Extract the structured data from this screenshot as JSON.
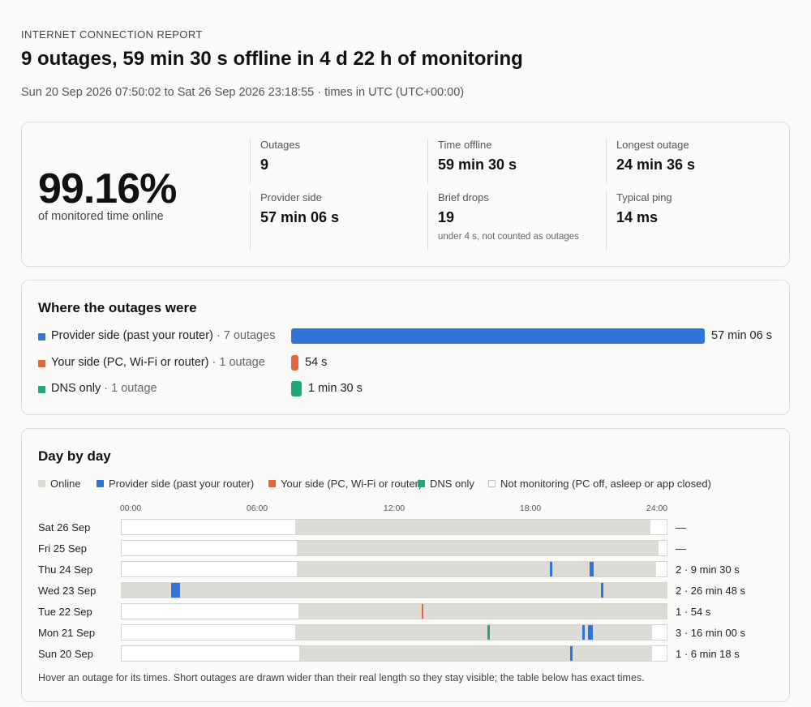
{
  "header": {
    "eyebrow": "INTERNET CONNECTION REPORT",
    "headline": "9 outages, 59 min 30 s offline in 4 d 22 h of monitoring",
    "range": "Sun 20 Sep 2026 07:50:02 to Sat 26 Sep 2026 23:18:55 · times in UTC (UTC+00:00)"
  },
  "summary": {
    "uptime": "99.16%",
    "uptime_label": "of monitored time online",
    "stats": [
      {
        "label": "Outages",
        "value": "9"
      },
      {
        "label": "Time offline",
        "value": "59 min 30 s"
      },
      {
        "label": "Longest outage",
        "value": "24 min 36 s"
      },
      {
        "label": "Provider side",
        "value": "57 min 06 s"
      },
      {
        "label": "Brief drops",
        "value": "19",
        "note": "under 4 s, not counted as outages"
      },
      {
        "label": "Typical ping",
        "value": "14 ms"
      }
    ]
  },
  "where": {
    "title": "Where the outages were",
    "rows": [
      {
        "label": "Provider side (past your router)",
        "count": " · 7 outages",
        "value": "57 min 06 s",
        "seconds": 3426,
        "color": "#2f74d6"
      },
      {
        "label": "Your side (PC, Wi-Fi or router)",
        "count": " · 1 outage",
        "value": "54 s",
        "seconds": 54,
        "color": "#e0673a"
      },
      {
        "label": "DNS only",
        "count": " · 1 outage",
        "value": "1 min 30 s",
        "seconds": 90,
        "color": "#22a77a"
      }
    ]
  },
  "days": {
    "title": "Day by day",
    "legend": [
      {
        "label": "Online",
        "color": "#dddbd6"
      },
      {
        "label": "Provider side (past your router)",
        "color": "#2f74d6"
      },
      {
        "label": "Your side (PC, Wi-Fi or router)",
        "color": "#e0673a"
      },
      {
        "label": "DNS only",
        "color": "#22a77a"
      },
      {
        "label": "Not monitoring (PC off, asleep or app closed)",
        "color": "#ffffff"
      }
    ],
    "axis_ticks": [
      "00:00",
      "06:00",
      "12:00",
      "18:00",
      "24:00"
    ],
    "rows": [
      {
        "label": "Sat 26 Sep",
        "summary": "—",
        "online": [
          [
            7.65,
            23.3
          ]
        ],
        "outages": []
      },
      {
        "label": "Fri 25 Sep",
        "summary": "—",
        "online": [
          [
            7.72,
            23.65
          ]
        ],
        "outages": []
      },
      {
        "label": "Thu 24 Sep",
        "summary": "2 · 9 min 30 s",
        "online": [
          [
            7.72,
            23.55
          ]
        ],
        "outages": [
          {
            "start": 18.86,
            "end": 18.96,
            "kind": "provider"
          },
          {
            "start": 20.6,
            "end": 20.78,
            "kind": "provider"
          }
        ]
      },
      {
        "label": "Wed 23 Sep",
        "summary": "2 · 26 min 48 s",
        "online": [
          [
            0,
            24
          ]
        ],
        "outages": [
          {
            "start": 2.17,
            "end": 2.58,
            "kind": "provider"
          },
          {
            "start": 21.1,
            "end": 21.2,
            "kind": "provider"
          }
        ]
      },
      {
        "label": "Tue 22 Sep",
        "summary": "1 · 54 s",
        "online": [
          [
            7.8,
            24
          ]
        ],
        "outages": [
          {
            "start": 13.2,
            "end": 13.3,
            "kind": "yourside"
          }
        ]
      },
      {
        "label": "Mon 21 Sep",
        "summary": "3 · 16 min 00 s",
        "online": [
          [
            7.65,
            23.35
          ]
        ],
        "outages": [
          {
            "start": 16.1,
            "end": 16.2,
            "kind": "dns"
          },
          {
            "start": 20.3,
            "end": 20.4,
            "kind": "provider"
          },
          {
            "start": 20.55,
            "end": 20.74,
            "kind": "provider"
          }
        ]
      },
      {
        "label": "Sun 20 Sep",
        "summary": "1 · 6 min 18 s",
        "online": [
          [
            7.83,
            23.35
          ]
        ],
        "outages": [
          {
            "start": 19.75,
            "end": 19.86,
            "kind": "provider"
          }
        ]
      }
    ],
    "footnote": "Hover an outage for its times. Short outages are drawn wider than their real length so they stay visible; the table below has exact times."
  }
}
